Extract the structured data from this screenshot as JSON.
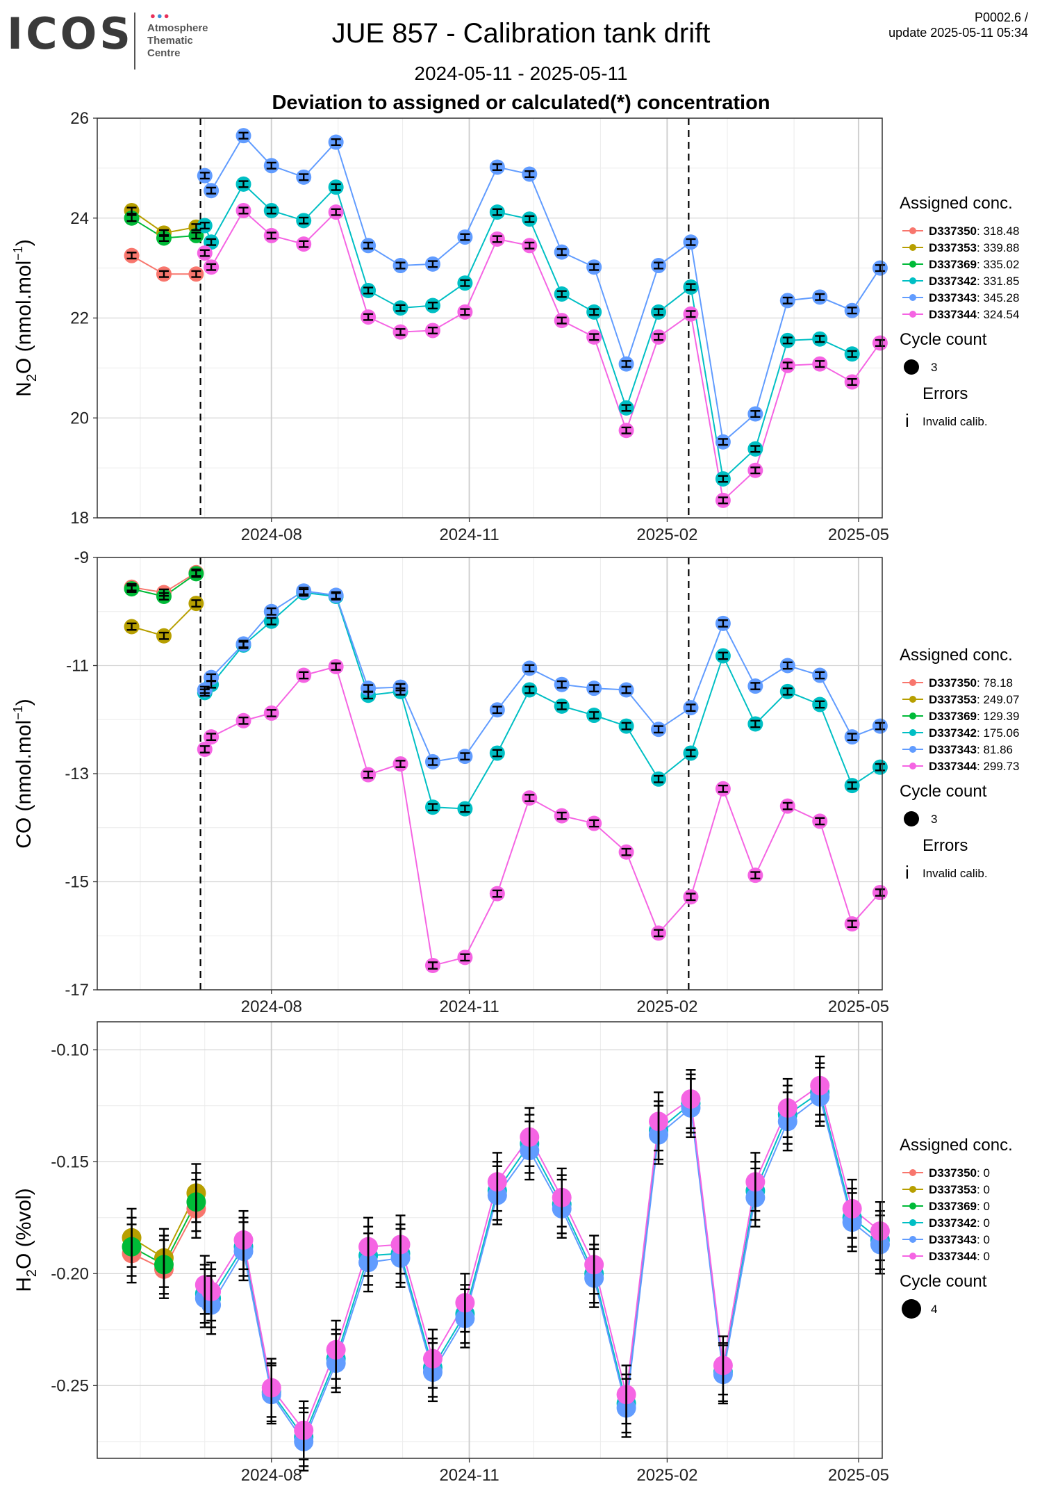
{
  "header": {
    "logo_text": "ICOS",
    "logo_lines": [
      "Atmosphere",
      "Thematic",
      "Centre"
    ],
    "title": "JUE 857 - Calibration tank drift",
    "date_range": "2024-05-11 - 2025-05-11",
    "subtitle": "Deviation to assigned or calculated(*) concentration",
    "version": "P0002.6 /",
    "update": "update  2025-05-11 05:34"
  },
  "colors": {
    "D337350": "#F8766D",
    "D337353": "#B79F00",
    "D337369": "#00BA38",
    "D337342": "#00BFC4",
    "D337343": "#619CFF",
    "D337344": "#F564E3"
  },
  "chart_data": [
    {
      "type": "line",
      "name": "n2o",
      "ylabel_main": "N",
      "ylabel_sub": "2",
      "ylabel_rest": "O (nmol.mol",
      "ylabel_sup": "−1",
      "ylabel_end": ")",
      "ylim": [
        18,
        26
      ],
      "yticks": [
        18,
        20,
        22,
        24,
        26
      ],
      "ytick_labels": [
        "18",
        "20",
        "22",
        "24",
        "26"
      ],
      "xlim": [
        "2024-05-12",
        "2025-05-12"
      ],
      "xticks": [
        "2024-08-01",
        "2024-11-01",
        "2025-02-01",
        "2025-05-01"
      ],
      "xtick_labels": [
        "2024-08",
        "2024-11",
        "2025-02",
        "2025-05"
      ],
      "vlines": [
        "2024-06-29",
        "2025-02-11"
      ],
      "grid": true,
      "legend": {
        "title": "Assigned conc.",
        "entries": [
          {
            "id": "D337350",
            "value": ": 318.48"
          },
          {
            "id": "D337353",
            "value": ": 339.88"
          },
          {
            "id": "D337369",
            "value": ": 335.02"
          },
          {
            "id": "D337342",
            "value": ": 331.85"
          },
          {
            "id": "D337343",
            "value": ": 345.28"
          },
          {
            "id": "D337344",
            "value": ": 324.54"
          }
        ],
        "cycle_title": "Cycle count",
        "cycle_value": "3",
        "errors_title": "Errors",
        "errors_label": "Invalid calib."
      },
      "series": [
        {
          "name": "D337350",
          "x": [
            "2024-05-28",
            "2024-06-12",
            "2024-06-27"
          ],
          "y": [
            23.25,
            22.88,
            22.88
          ],
          "err": 0.06
        },
        {
          "name": "D337353",
          "x": [
            "2024-05-28",
            "2024-06-12",
            "2024-06-27"
          ],
          "y": [
            24.15,
            23.7,
            23.82
          ],
          "err": 0.06
        },
        {
          "name": "D337369",
          "x": [
            "2024-05-28",
            "2024-06-12",
            "2024-06-27"
          ],
          "y": [
            24.0,
            23.6,
            23.65
          ],
          "err": 0.06
        },
        {
          "name": "D337342",
          "x": [
            "2024-07-01",
            "2024-07-04",
            "2024-07-19",
            "2024-08-01",
            "2024-08-16",
            "2024-08-31",
            "2024-09-15",
            "2024-09-30",
            "2024-10-15",
            "2024-10-30",
            "2024-11-14",
            "2024-11-29",
            "2024-12-14",
            "2024-12-29",
            "2025-01-13",
            "2025-01-28",
            "2025-02-12",
            "2025-02-27",
            "2025-03-14",
            "2025-03-29",
            "2025-04-13",
            "2025-04-28"
          ],
          "y": [
            23.85,
            23.52,
            24.68,
            24.15,
            23.95,
            24.62,
            22.55,
            22.2,
            22.25,
            22.7,
            24.12,
            23.98,
            22.48,
            22.12,
            20.2,
            22.12,
            22.62,
            18.78,
            19.38,
            21.55,
            21.58,
            21.28
          ],
          "err": 0.06
        },
        {
          "name": "D337343",
          "x": [
            "2024-07-01",
            "2024-07-04",
            "2024-07-19",
            "2024-08-01",
            "2024-08-16",
            "2024-08-31",
            "2024-09-15",
            "2024-09-30",
            "2024-10-15",
            "2024-10-30",
            "2024-11-14",
            "2024-11-29",
            "2024-12-14",
            "2024-12-29",
            "2025-01-13",
            "2025-01-28",
            "2025-02-12",
            "2025-02-27",
            "2025-03-14",
            "2025-03-29",
            "2025-04-13",
            "2025-04-28",
            "2025-05-11"
          ],
          "y": [
            24.85,
            24.55,
            25.65,
            25.05,
            24.82,
            25.52,
            23.45,
            23.05,
            23.08,
            23.62,
            25.02,
            24.88,
            23.32,
            23.02,
            21.08,
            23.05,
            23.52,
            19.52,
            20.08,
            22.35,
            22.42,
            22.15,
            23.0
          ],
          "err": 0.06
        },
        {
          "name": "D337344",
          "x": [
            "2024-07-01",
            "2024-07-04",
            "2024-07-19",
            "2024-08-01",
            "2024-08-16",
            "2024-08-31",
            "2024-09-15",
            "2024-09-30",
            "2024-10-15",
            "2024-10-30",
            "2024-11-14",
            "2024-11-29",
            "2024-12-14",
            "2024-12-29",
            "2025-01-13",
            "2025-01-28",
            "2025-02-12",
            "2025-02-27",
            "2025-03-14",
            "2025-03-29",
            "2025-04-13",
            "2025-04-28",
            "2025-05-11"
          ],
          "y": [
            23.3,
            23.02,
            24.15,
            23.65,
            23.48,
            24.12,
            22.02,
            21.72,
            21.75,
            22.12,
            23.58,
            23.45,
            21.95,
            21.62,
            19.75,
            21.62,
            22.08,
            18.35,
            18.95,
            21.05,
            21.08,
            20.72,
            21.5
          ],
          "err": 0.06
        }
      ]
    },
    {
      "type": "line",
      "name": "co",
      "ylabel_main": "CO (nmol.mol",
      "ylabel_sub": "",
      "ylabel_rest": "",
      "ylabel_sup": "−1",
      "ylabel_end": ")",
      "ylim": [
        -17,
        -9
      ],
      "yticks": [
        -17,
        -15,
        -13,
        -11,
        -9
      ],
      "ytick_labels": [
        "-17",
        "-15",
        "-13",
        "-11",
        "-9"
      ],
      "xlim": [
        "2024-05-12",
        "2025-05-12"
      ],
      "xticks": [
        "2024-08-01",
        "2024-11-01",
        "2025-02-01",
        "2025-05-01"
      ],
      "xtick_labels": [
        "2024-08",
        "2024-11",
        "2025-02",
        "2025-05"
      ],
      "vlines": [
        "2024-06-29",
        "2025-02-11"
      ],
      "grid": true,
      "legend": {
        "title": "Assigned conc.",
        "entries": [
          {
            "id": "D337350",
            "value": ": 78.18"
          },
          {
            "id": "D337353",
            "value": ": 249.07"
          },
          {
            "id": "D337369",
            "value": ": 129.39"
          },
          {
            "id": "D337342",
            "value": ": 175.06"
          },
          {
            "id": "D337343",
            "value": ": 81.86"
          },
          {
            "id": "D337344",
            "value": ": 299.73"
          }
        ],
        "cycle_title": "Cycle count",
        "cycle_value": "3",
        "errors_title": "Errors",
        "errors_label": "Invalid calib."
      },
      "series": [
        {
          "name": "D337350",
          "x": [
            "2024-05-28",
            "2024-06-12",
            "2024-06-27"
          ],
          "y": [
            -9.55,
            -9.65,
            -9.28
          ],
          "err": 0.06
        },
        {
          "name": "D337353",
          "x": [
            "2024-05-28",
            "2024-06-12",
            "2024-06-27"
          ],
          "y": [
            -10.28,
            -10.45,
            -9.85
          ],
          "err": 0.06
        },
        {
          "name": "D337369",
          "x": [
            "2024-05-28",
            "2024-06-12",
            "2024-06-27"
          ],
          "y": [
            -9.58,
            -9.72,
            -9.3
          ],
          "err": 0.06
        },
        {
          "name": "D337342",
          "x": [
            "2024-07-01",
            "2024-07-04",
            "2024-07-19",
            "2024-08-01",
            "2024-08-16",
            "2024-08-31",
            "2024-09-15",
            "2024-09-30",
            "2024-10-15",
            "2024-10-30",
            "2024-11-14",
            "2024-11-29",
            "2024-12-14",
            "2024-12-29",
            "2025-01-13",
            "2025-01-28",
            "2025-02-12",
            "2025-02-27",
            "2025-03-14",
            "2025-03-29",
            "2025-04-13",
            "2025-04-28",
            "2025-05-11"
          ],
          "y": [
            -11.5,
            -11.35,
            -10.62,
            -10.18,
            -9.65,
            -9.72,
            -11.55,
            -11.48,
            -13.62,
            -13.65,
            -12.62,
            -11.45,
            -11.75,
            -11.92,
            -12.12,
            -13.1,
            -12.62,
            -10.82,
            -12.08,
            -11.48,
            -11.72,
            -13.22,
            -12.88
          ],
          "err": 0.06
        },
        {
          "name": "D337343",
          "x": [
            "2024-07-01",
            "2024-07-04",
            "2024-07-19",
            "2024-08-01",
            "2024-08-16",
            "2024-08-31",
            "2024-09-15",
            "2024-09-30",
            "2024-10-15",
            "2024-10-30",
            "2024-11-14",
            "2024-11-29",
            "2024-12-14",
            "2024-12-29",
            "2025-01-13",
            "2025-01-28",
            "2025-02-12",
            "2025-02-27",
            "2025-03-14",
            "2025-03-29",
            "2025-04-13",
            "2025-04-28",
            "2025-05-11"
          ],
          "y": [
            -11.45,
            -11.22,
            -10.6,
            -10.0,
            -9.62,
            -9.7,
            -11.42,
            -11.4,
            -12.78,
            -12.68,
            -11.82,
            -11.05,
            -11.35,
            -11.42,
            -11.45,
            -12.18,
            -11.78,
            -10.22,
            -11.38,
            -11.0,
            -11.18,
            -12.32,
            -12.12
          ],
          "err": 0.06
        },
        {
          "name": "D337344",
          "x": [
            "2024-07-01",
            "2024-07-04",
            "2024-07-19",
            "2024-08-01",
            "2024-08-16",
            "2024-08-31",
            "2024-09-15",
            "2024-09-30",
            "2024-10-15",
            "2024-10-30",
            "2024-11-14",
            "2024-11-29",
            "2024-12-14",
            "2024-12-29",
            "2025-01-13",
            "2025-01-28",
            "2025-02-12",
            "2025-02-27",
            "2025-03-14",
            "2025-03-29",
            "2025-04-13",
            "2025-04-28",
            "2025-05-11"
          ],
          "y": [
            -12.55,
            -12.32,
            -12.02,
            -11.88,
            -11.18,
            -11.02,
            -13.02,
            -12.82,
            -16.55,
            -16.4,
            -15.22,
            -13.45,
            -13.78,
            -13.92,
            -14.45,
            -15.95,
            -15.28,
            -13.28,
            -14.88,
            -13.6,
            -13.88,
            -15.78,
            -15.2
          ],
          "err": 0.06
        }
      ]
    },
    {
      "type": "line",
      "name": "h2o",
      "ylabel_main": "H",
      "ylabel_sub": "2",
      "ylabel_rest": "O (%vol)",
      "ylabel_sup": "",
      "ylabel_end": "",
      "ylim": [
        -0.2825,
        -0.0875
      ],
      "yticks": [
        -0.25,
        -0.2,
        -0.15,
        -0.1
      ],
      "ytick_labels": [
        "-0.25",
        "-0.20",
        "-0.15",
        "-0.10"
      ],
      "xlim": [
        "2024-05-12",
        "2025-05-12"
      ],
      "xticks": [
        "2024-08-01",
        "2024-11-01",
        "2025-02-01",
        "2025-05-01"
      ],
      "xtick_labels": [
        "2024-08",
        "2024-11",
        "2025-02",
        "2025-05"
      ],
      "vlines": [],
      "grid": true,
      "legend": {
        "title": "Assigned conc.",
        "entries": [
          {
            "id": "D337350",
            "value": ": 0"
          },
          {
            "id": "D337353",
            "value": ": 0"
          },
          {
            "id": "D337369",
            "value": ": 0"
          },
          {
            "id": "D337342",
            "value": ": 0"
          },
          {
            "id": "D337343",
            "value": ": 0"
          },
          {
            "id": "D337344",
            "value": ": 0"
          }
        ],
        "cycle_title": "Cycle count",
        "cycle_value": "4",
        "errors_title": "",
        "errors_label": ""
      },
      "series": [
        {
          "name": "D337350",
          "x": [
            "2024-05-28",
            "2024-06-12",
            "2024-06-27"
          ],
          "y": [
            -0.191,
            -0.198,
            -0.171
          ],
          "err": 0.013
        },
        {
          "name": "D337353",
          "x": [
            "2024-05-28",
            "2024-06-12",
            "2024-06-27"
          ],
          "y": [
            -0.184,
            -0.193,
            -0.164
          ],
          "err": 0.013
        },
        {
          "name": "D337369",
          "x": [
            "2024-05-28",
            "2024-06-12",
            "2024-06-27"
          ],
          "y": [
            -0.188,
            -0.196,
            -0.168
          ],
          "err": 0.013
        },
        {
          "name": "D337342",
          "x": [
            "2024-07-01",
            "2024-07-04",
            "2024-07-19",
            "2024-08-01",
            "2024-08-16",
            "2024-08-31",
            "2024-09-15",
            "2024-09-30",
            "2024-10-15",
            "2024-10-30",
            "2024-11-14",
            "2024-11-29",
            "2024-12-14",
            "2024-12-29",
            "2025-01-13",
            "2025-01-28",
            "2025-02-12",
            "2025-02-27",
            "2025-03-14",
            "2025-03-29",
            "2025-04-13",
            "2025-04-28",
            "2025-05-11"
          ],
          "y": [
            -0.209,
            -0.211,
            -0.188,
            -0.253,
            -0.273,
            -0.238,
            -0.192,
            -0.191,
            -0.242,
            -0.218,
            -0.163,
            -0.142,
            -0.169,
            -0.2,
            -0.258,
            -0.136,
            -0.124,
            -0.244,
            -0.163,
            -0.129,
            -0.119,
            -0.175,
            -0.185
          ],
          "err": 0.013
        },
        {
          "name": "D337343",
          "x": [
            "2024-07-01",
            "2024-07-04",
            "2024-07-19",
            "2024-08-01",
            "2024-08-16",
            "2024-08-31",
            "2024-09-15",
            "2024-09-30",
            "2024-10-15",
            "2024-10-30",
            "2024-11-14",
            "2024-11-29",
            "2024-12-14",
            "2024-12-29",
            "2025-01-13",
            "2025-01-28",
            "2025-02-12",
            "2025-02-27",
            "2025-03-14",
            "2025-03-29",
            "2025-04-13",
            "2025-04-28",
            "2025-05-11"
          ],
          "y": [
            -0.211,
            -0.214,
            -0.19,
            -0.254,
            -0.275,
            -0.24,
            -0.195,
            -0.193,
            -0.244,
            -0.22,
            -0.165,
            -0.145,
            -0.171,
            -0.202,
            -0.26,
            -0.138,
            -0.126,
            -0.245,
            -0.166,
            -0.132,
            -0.121,
            -0.177,
            -0.187
          ],
          "err": 0.013
        },
        {
          "name": "D337344",
          "x": [
            "2024-07-01",
            "2024-07-04",
            "2024-07-19",
            "2024-08-01",
            "2024-08-16",
            "2024-08-31",
            "2024-09-15",
            "2024-09-30",
            "2024-10-15",
            "2024-10-30",
            "2024-11-14",
            "2024-11-29",
            "2024-12-14",
            "2024-12-29",
            "2025-01-13",
            "2025-01-28",
            "2025-02-12",
            "2025-02-27",
            "2025-03-14",
            "2025-03-29",
            "2025-04-13",
            "2025-04-28",
            "2025-05-11"
          ],
          "y": [
            -0.205,
            -0.208,
            -0.185,
            -0.251,
            -0.27,
            -0.234,
            -0.188,
            -0.187,
            -0.238,
            -0.213,
            -0.159,
            -0.139,
            -0.166,
            -0.196,
            -0.254,
            -0.132,
            -0.122,
            -0.241,
            -0.159,
            -0.126,
            -0.116,
            -0.171,
            -0.181
          ],
          "err": 0.013
        }
      ]
    }
  ]
}
